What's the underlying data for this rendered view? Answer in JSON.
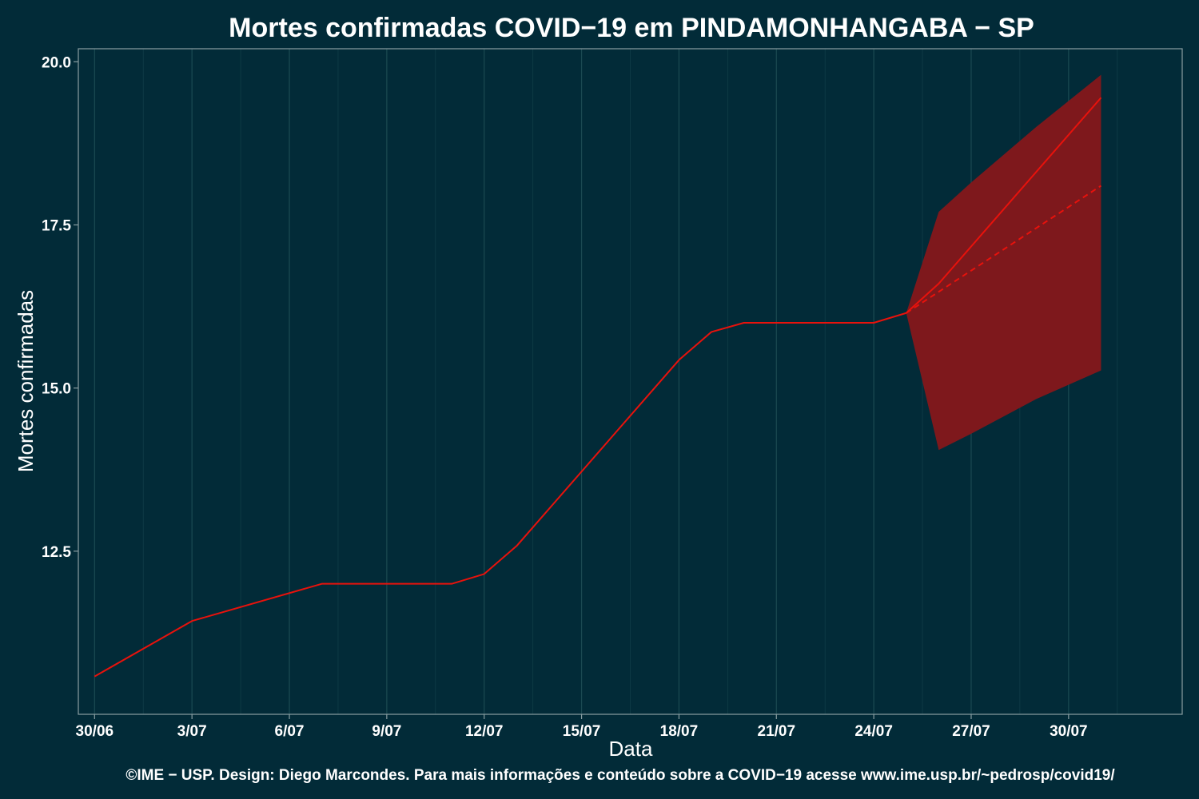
{
  "chart_data": {
    "type": "line",
    "title": "Mortes confirmadas COVID−19 em PINDAMONHANGABA − SP",
    "xlabel": "Data",
    "ylabel": "Mortes confirmadas",
    "caption": "©IME − USP. Design: Diego Marcondes. Para mais informações e conteúdo sobre a COVID−19 acesse www.ime.usp.br/~pedrosp/covid19/",
    "x_day_range": [
      29.5,
      63.5
    ],
    "ylim": [
      10.0,
      20.2
    ],
    "x_ticks": [
      {
        "day": 30,
        "label": "30/06"
      },
      {
        "day": 33,
        "label": "3/07"
      },
      {
        "day": 36,
        "label": "6/07"
      },
      {
        "day": 39,
        "label": "9/07"
      },
      {
        "day": 42,
        "label": "12/07"
      },
      {
        "day": 45,
        "label": "15/07"
      },
      {
        "day": 48,
        "label": "18/07"
      },
      {
        "day": 51,
        "label": "21/07"
      },
      {
        "day": 54,
        "label": "24/07"
      },
      {
        "day": 57,
        "label": "27/07"
      },
      {
        "day": 60,
        "label": "30/07"
      }
    ],
    "y_ticks": [
      {
        "value": 12.5,
        "label": "12.5"
      },
      {
        "value": 15.0,
        "label": "15.0"
      },
      {
        "value": 17.5,
        "label": "17.5"
      },
      {
        "value": 20.0,
        "label": "20.0"
      }
    ],
    "grid": true,
    "colors": {
      "background": "#022b38",
      "line": "#e8120c",
      "band": "#7e181c",
      "grid": "#1b4a52"
    },
    "series": [
      {
        "style": "solid",
        "points": [
          {
            "x": "30/06",
            "day": 30,
            "y": 10.58
          },
          {
            "x": "3/07",
            "day": 33,
            "y": 11.43
          },
          {
            "x": "7/07",
            "day": 37,
            "y": 12.0
          },
          {
            "x": "11/07",
            "day": 41,
            "y": 12.0
          },
          {
            "x": "12/07",
            "day": 42,
            "y": 12.15
          },
          {
            "x": "13/07",
            "day": 43,
            "y": 12.58
          },
          {
            "x": "18/07",
            "day": 48,
            "y": 15.43
          },
          {
            "x": "19/07",
            "day": 49,
            "y": 15.86
          },
          {
            "x": "20/07",
            "day": 50,
            "y": 16.0
          },
          {
            "x": "24/07",
            "day": 54,
            "y": 16.0
          },
          {
            "x": "25/07",
            "day": 55,
            "y": 16.15
          }
        ]
      },
      {
        "style": "solid",
        "points": [
          {
            "x": "25/07",
            "day": 55,
            "y": 16.15
          },
          {
            "x": "26/07",
            "day": 56,
            "y": 16.6
          },
          {
            "x": "31/07",
            "day": 61,
            "y": 19.45
          }
        ]
      },
      {
        "style": "dashed",
        "points": [
          {
            "x": "25/07",
            "day": 55,
            "y": 16.15
          },
          {
            "x": "31/07",
            "day": 61,
            "y": 18.1
          }
        ]
      }
    ],
    "interval": [
      {
        "x": "25/07",
        "day": 55,
        "lower": 16.15,
        "upper": 16.15
      },
      {
        "x": "26/07",
        "day": 56,
        "lower": 14.05,
        "upper": 17.7
      },
      {
        "x": "27/07",
        "day": 57,
        "lower": 14.3,
        "upper": 18.15
      },
      {
        "x": "29/07",
        "day": 59,
        "lower": 14.83,
        "upper": 19.0
      },
      {
        "x": "31/07",
        "day": 61,
        "lower": 15.27,
        "upper": 19.8
      }
    ]
  }
}
